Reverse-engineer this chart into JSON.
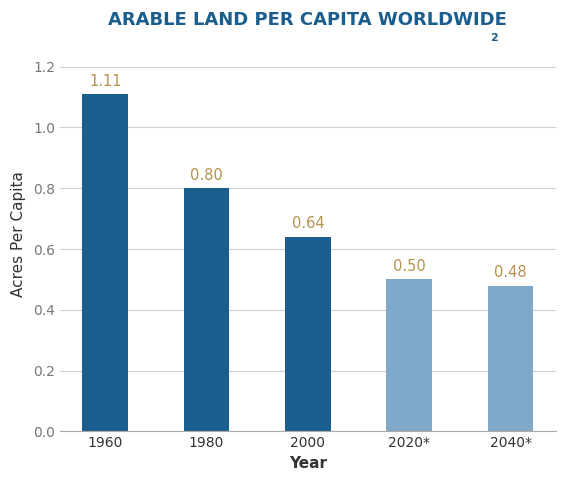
{
  "categories": [
    "1960",
    "1980",
    "2000",
    "2020*",
    "2040*"
  ],
  "values": [
    1.11,
    0.8,
    0.64,
    0.5,
    0.48
  ],
  "bar_colors": [
    "#1b5e8e",
    "#1b5e8e",
    "#1b5e8e",
    "#7fa8c9",
    "#7fa8c9"
  ],
  "label_color": "#b5924c",
  "title": "ARABLE LAND PER CAPITA WORLDWIDE",
  "title_superscript": "2",
  "title_color": "#1b5e8e",
  "xlabel": "Year",
  "ylabel": "Acres Per Capita",
  "ylim": [
    0,
    1.3
  ],
  "yticks": [
    0.0,
    0.2,
    0.4,
    0.6,
    0.8,
    1.0,
    1.2
  ],
  "title_fontsize": 13,
  "label_fontsize": 10.5,
  "axis_label_fontsize": 11,
  "tick_fontsize": 10,
  "background_color": "#ffffff",
  "grid_color": "#d0d0d0"
}
